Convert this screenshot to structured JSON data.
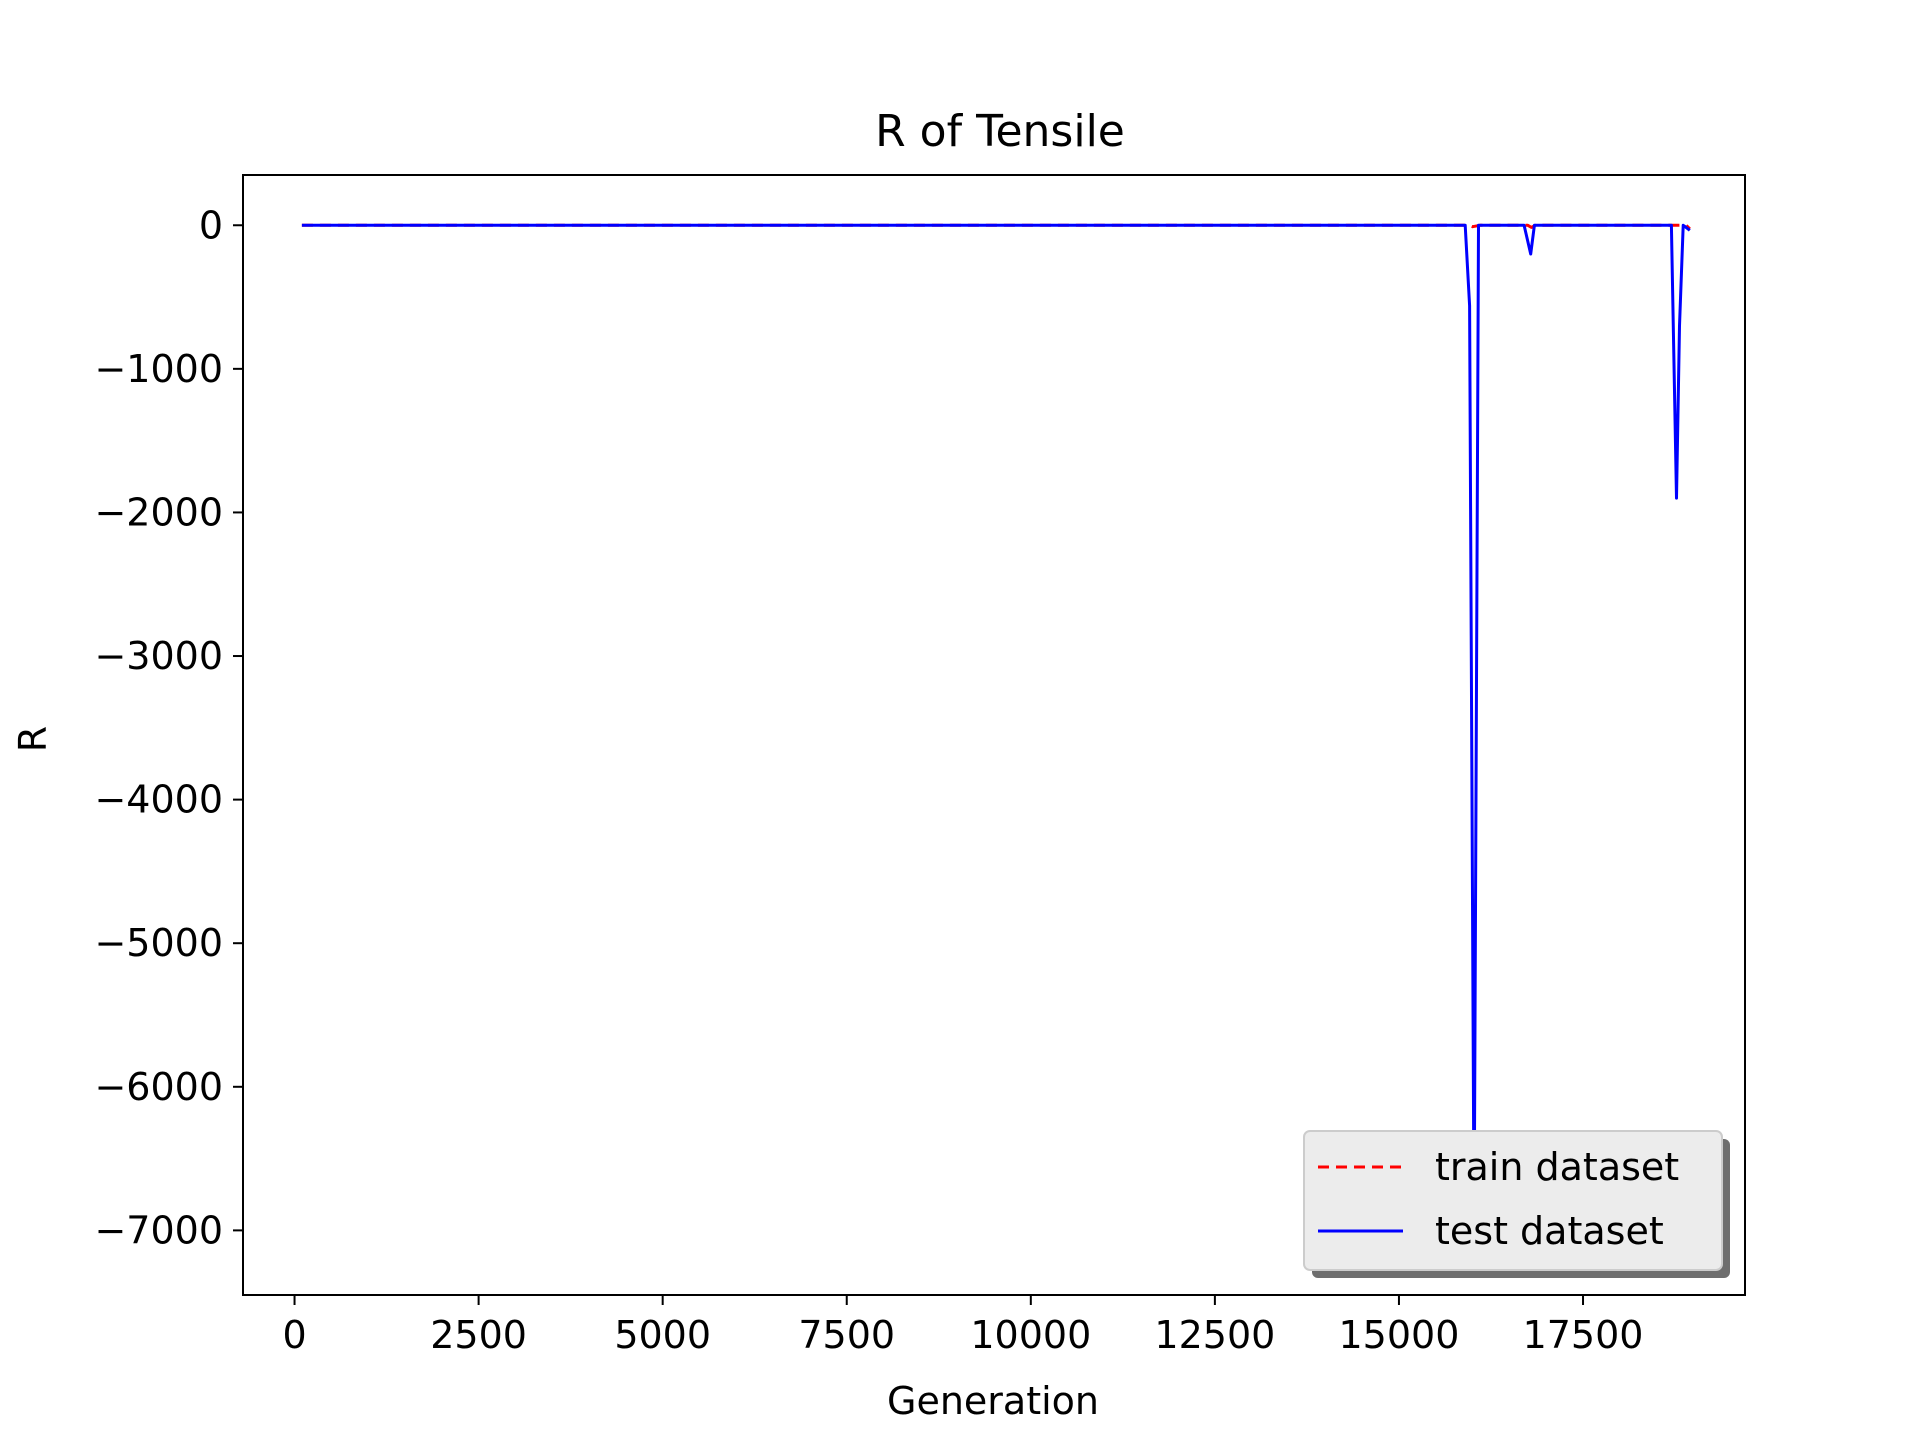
{
  "chart_data": {
    "type": "line",
    "title": "R of Tensile",
    "xlabel": "Generation",
    "ylabel": "R",
    "xlim": [
      -700,
      19700
    ],
    "ylim": [
      -7450,
      350
    ],
    "xticks": [
      0,
      2500,
      5000,
      7500,
      10000,
      12500,
      15000,
      17500
    ],
    "xtick_labels": [
      "0",
      "2500",
      "5000",
      "7500",
      "10000",
      "12500",
      "15000",
      "17500"
    ],
    "yticks": [
      0,
      -1000,
      -2000,
      -3000,
      -4000,
      -5000,
      -6000,
      -7000
    ],
    "ytick_labels": [
      "0",
      "−1000",
      "−2000",
      "−3000",
      "−4000",
      "−5000",
      "−6000",
      "−7000"
    ],
    "grid": false,
    "legend_position": "lower right",
    "series": [
      {
        "name": "train dataset",
        "color": "#ff0000",
        "style": "dashed",
        "x": [
          100,
          15950,
          16000,
          16100,
          16750,
          16800,
          16850,
          18900,
          18950
        ],
        "y": [
          0,
          0,
          -10,
          0,
          0,
          -15,
          0,
          0,
          -25
        ]
      },
      {
        "name": "test dataset",
        "color": "#0000ff",
        "style": "solid",
        "x": [
          100,
          15900,
          15960,
          16020,
          16080,
          16140,
          16200,
          16700,
          16790,
          16840,
          16890,
          18700,
          18770,
          18810,
          18860,
          18900,
          18950
        ],
        "y": [
          0,
          0,
          -560,
          -7000,
          0,
          0,
          0,
          0,
          -200,
          0,
          0,
          0,
          -1900,
          -700,
          0,
          -15,
          -35
        ]
      }
    ]
  }
}
